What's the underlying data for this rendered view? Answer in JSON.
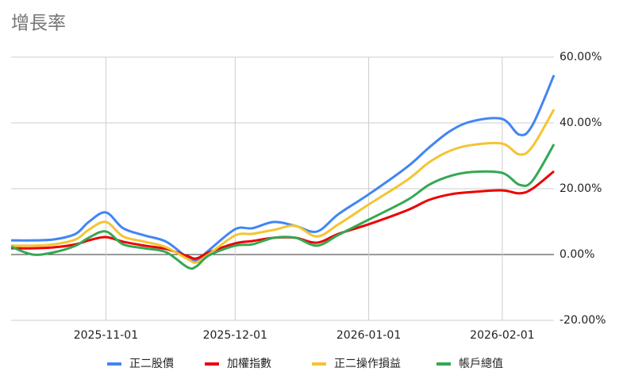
{
  "chart_data": {
    "type": "line",
    "title": "增長率",
    "x": [
      "2025-10-10",
      "2025-10-15",
      "2025-10-20",
      "2025-10-25",
      "2025-10-28",
      "2025-11-01",
      "2025-11-05",
      "2025-11-10",
      "2025-11-15",
      "2025-11-20",
      "2025-11-22",
      "2025-11-25",
      "2025-12-01",
      "2025-12-05",
      "2025-12-10",
      "2025-12-15",
      "2025-12-20",
      "2025-12-25",
      "2026-01-01",
      "2026-01-10",
      "2026-01-15",
      "2026-01-20",
      "2026-01-25",
      "2026-02-01",
      "2026-02-05",
      "2026-02-08",
      "2026-02-13"
    ],
    "series": [
      {
        "name": "正二股價",
        "color": "#4285f4",
        "values": [
          4.3,
          4.3,
          4.6,
          6.3,
          9.9,
          12.8,
          8,
          5.8,
          3.9,
          -1,
          -1.7,
          1.4,
          7.7,
          8,
          9.9,
          8.7,
          7,
          12.3,
          18.3,
          26.7,
          32.5,
          37.6,
          40.5,
          41.2,
          36.4,
          39.3,
          54.5
        ]
      },
      {
        "name": "加權指數",
        "color": "#ea0000",
        "values": [
          1.9,
          1.9,
          2.2,
          3.1,
          4.3,
          5.3,
          3.9,
          2.7,
          1.7,
          -0.5,
          -1.2,
          0.7,
          3.4,
          4.1,
          5.1,
          5.1,
          3.6,
          6.3,
          9.2,
          13.5,
          16.6,
          18.3,
          19,
          19.5,
          18.6,
          20,
          25.3
        ]
      },
      {
        "name": "正二操作損益",
        "color": "#f4c430",
        "values": [
          2.7,
          2.7,
          3.1,
          4.6,
          7.5,
          9.9,
          5.5,
          3.9,
          2.2,
          -1.4,
          -2.4,
          0.2,
          5.8,
          6.3,
          7.5,
          8.7,
          5.5,
          9.2,
          15.2,
          22.7,
          28,
          31.6,
          33.3,
          33.7,
          30.4,
          32.8,
          44.1
        ]
      },
      {
        "name": "帳戶總值",
        "color": "#34a853",
        "values": [
          2.4,
          0,
          0.7,
          2.7,
          5.1,
          7,
          3.1,
          1.9,
          0.7,
          -3.9,
          -3.6,
          -0.2,
          2.7,
          3.1,
          5.1,
          5.1,
          2.7,
          6,
          10.6,
          16.6,
          21.2,
          23.9,
          25.1,
          24.8,
          21.2,
          22.4,
          33.5
        ]
      }
    ],
    "xlim": [
      "2025-10-10",
      "2026-02-13"
    ],
    "xticks": [
      "2025-11-01",
      "2025-12-01",
      "2026-01-01",
      "2026-02-01"
    ],
    "ylim": [
      -20,
      60
    ],
    "yticks": [
      {
        "value": -20,
        "label": "-20.00%"
      },
      {
        "value": 0,
        "label": "0.00%"
      },
      {
        "value": 20,
        "label": "20.00%"
      },
      {
        "value": 40,
        "label": "40.00%"
      },
      {
        "value": 60,
        "label": "60.00%"
      }
    ],
    "grid": true,
    "legend": "bottom"
  }
}
